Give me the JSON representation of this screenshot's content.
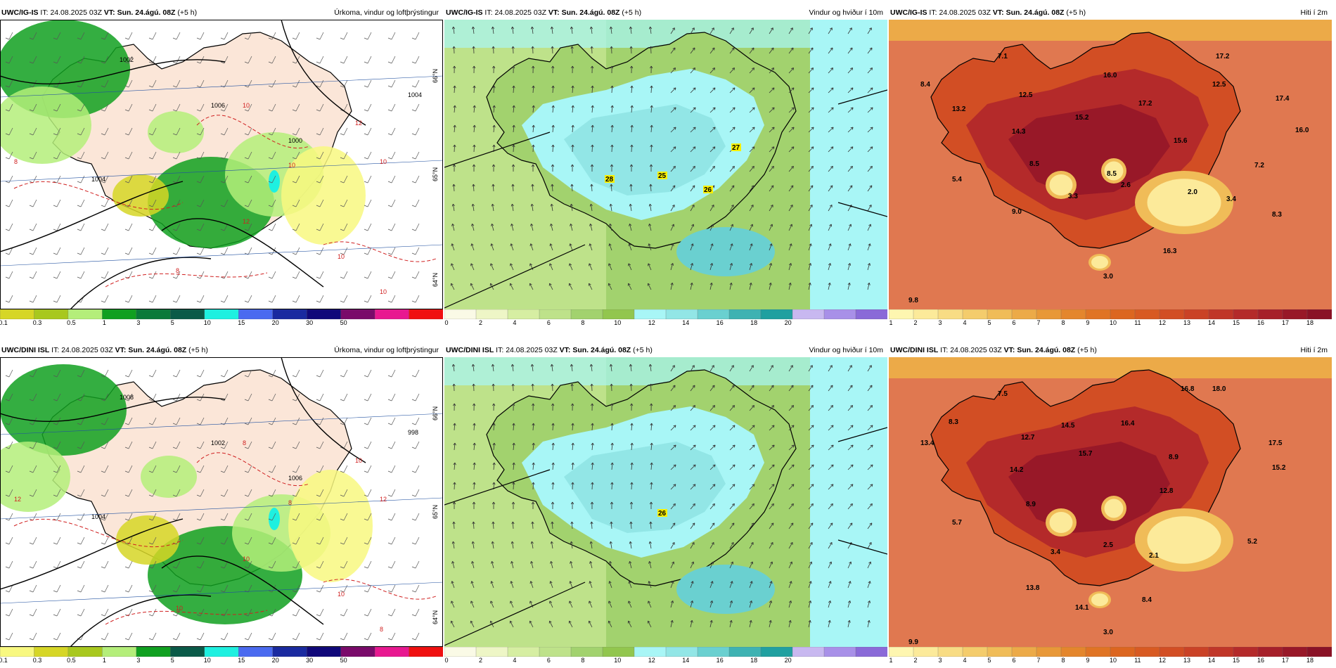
{
  "panels": [
    {
      "id": "precip-igis",
      "model": "UWC/IG-IS",
      "it_label": "IT:",
      "it_value": "24.08.2025 03Z",
      "vt_label": "VT:",
      "vt_value": "Sun. 24.ágú. 08Z",
      "lead": "(+5 h)",
      "title": "Úrkoma, vindur og loftþrýstingur",
      "colorbar_ticks": [
        "0.1",
        "0.3",
        "0.5",
        "1",
        "3",
        "5",
        "10",
        "15",
        "20",
        "30",
        "50"
      ],
      "colorbar_colors": [
        "#d6d626",
        "#a8c81e",
        "#b4ee7a",
        "#10a020",
        "#0a7a3a",
        "#0a5a48",
        "#1ef0e0",
        "#4a6af0",
        "#1a2aa0",
        "#10087a",
        "#7a0a6a",
        "#e81890",
        "#f01010"
      ],
      "pressure_labels": [
        "1006",
        "1004",
        "1000",
        "1002",
        "1004"
      ],
      "temperature_labels": [
        "10",
        "12",
        "8",
        "10",
        "10",
        "12",
        "8",
        "10",
        "10"
      ],
      "lat_labels": [
        "66°N",
        "65°N",
        "64°N"
      ]
    },
    {
      "id": "wind-igis",
      "model": "UWC/IG-IS",
      "it_label": "IT:",
      "it_value": "24.08.2025 03Z",
      "vt_label": "VT:",
      "vt_value": "Sun. 24.ágú. 08Z",
      "lead": "(+5 h)",
      "title": "Vindur og hviður í 10m",
      "colorbar_ticks": [
        "0",
        "2",
        "4",
        "6",
        "8",
        "10",
        "12",
        "14",
        "16",
        "18",
        "20"
      ],
      "colorbar_colors": [
        "#fafae6",
        "#eef6c6",
        "#d6eea2",
        "#bee28a",
        "#a2d26e",
        "#92c64e",
        "#a8f6f6",
        "#92e6e6",
        "#6ad0d0",
        "#3eb2b2",
        "#20a0a0",
        "#c8b8f0",
        "#a890e8",
        "#8a6ad8"
      ],
      "gust_labels": [
        "28",
        "25",
        "26",
        "27"
      ]
    },
    {
      "id": "temp-igis",
      "model": "UWC/IG-IS",
      "it_label": "IT:",
      "it_value": "24.08.2025 03Z",
      "vt_label": "VT:",
      "vt_value": "Sun. 24.ágú. 08Z",
      "lead": "(+5 h)",
      "title": "Hiti í 2m",
      "colorbar_ticks": [
        "1",
        "2",
        "3",
        "4",
        "5",
        "6",
        "7",
        "8",
        "9",
        "10",
        "11",
        "12",
        "13",
        "14",
        "15",
        "16",
        "17",
        "18"
      ],
      "colorbar_colors": [
        "#fef6b0",
        "#fcea9a",
        "#f8dc84",
        "#f4cc6c",
        "#f0bc58",
        "#ecaa48",
        "#e89838",
        "#e4862c",
        "#e07424",
        "#dc6620",
        "#d85a22",
        "#d24e24",
        "#ca4226",
        "#c03628",
        "#b42a2a",
        "#a6202a",
        "#981828",
        "#8a1226"
      ],
      "values": [
        "7.1",
        "8.4",
        "12.5",
        "16.0",
        "17.2",
        "12.5",
        "17.4",
        "13.2",
        "17.2",
        "15.2",
        "16.0",
        "14.3",
        "15.6",
        "8.5",
        "7.2",
        "8.5",
        "5.4",
        "3.3",
        "2.6",
        "2.0",
        "3.4",
        "8.3",
        "9.0",
        "16.3",
        "3.0",
        "9.8"
      ]
    },
    {
      "id": "precip-dini",
      "model": "UWC/DINI ISL",
      "it_label": "IT:",
      "it_value": "24.08.2025 03Z",
      "vt_label": "VT:",
      "vt_value": "Sun. 24.ágú. 08Z",
      "lead": "(+5 h)",
      "title": "Úrkoma, vindur og loftþrýstingur",
      "colorbar_ticks": [
        "0.1",
        "0.3",
        "0.5",
        "1",
        "3",
        "5",
        "10",
        "15",
        "20",
        "30",
        "50"
      ],
      "colorbar_colors": [
        "#f8f880",
        "#d6d626",
        "#a8c81e",
        "#b4ee7a",
        "#10a020",
        "#0a5a48",
        "#1ef0e0",
        "#4a6af0",
        "#1a2aa0",
        "#10087a",
        "#7a0a6a",
        "#e81890",
        "#f01010"
      ],
      "pressure_labels": [
        "1002",
        "1004",
        "1006",
        "1008",
        "998"
      ],
      "temperature_labels": [
        "8",
        "10",
        "12",
        "8",
        "12",
        "10",
        "10",
        "8",
        "10"
      ],
      "lat_labels": [
        "66°N",
        "65°N",
        "64°N"
      ]
    },
    {
      "id": "wind-dini",
      "model": "UWC/DINI ISL",
      "it_label": "IT:",
      "it_value": "24.08.2025 03Z",
      "vt_label": "VT:",
      "vt_value": "Sun. 24.ágú. 08Z",
      "lead": "(+5 h)",
      "title": "Vindur og hviður í 10m",
      "colorbar_ticks": [
        "0",
        "2",
        "4",
        "6",
        "8",
        "10",
        "12",
        "14",
        "16",
        "18",
        "20"
      ],
      "colorbar_colors": [
        "#fafae6",
        "#eef6c6",
        "#d6eea2",
        "#bee28a",
        "#a2d26e",
        "#92c64e",
        "#a8f6f6",
        "#92e6e6",
        "#6ad0d0",
        "#3eb2b2",
        "#20a0a0",
        "#c8b8f0",
        "#a890e8",
        "#8a6ad8"
      ],
      "gust_labels": [
        "26"
      ]
    },
    {
      "id": "temp-dini",
      "model": "UWC/DINI ISL",
      "it_label": "IT:",
      "it_value": "24.08.2025 03Z",
      "vt_label": "VT:",
      "vt_value": "Sun. 24.ágú. 08Z",
      "lead": "(+5 h)",
      "title": "Hiti í 2m",
      "colorbar_ticks": [
        "1",
        "2",
        "3",
        "4",
        "5",
        "6",
        "7",
        "8",
        "9",
        "10",
        "11",
        "12",
        "13",
        "14",
        "15",
        "16",
        "17",
        "18"
      ],
      "colorbar_colors": [
        "#fef6b0",
        "#fcea9a",
        "#f8dc84",
        "#f4cc6c",
        "#f0bc58",
        "#ecaa48",
        "#e89838",
        "#e4862c",
        "#e07424",
        "#dc6620",
        "#d85a22",
        "#d24e24",
        "#ca4226",
        "#c03628",
        "#b42a2a",
        "#a6202a",
        "#981828",
        "#8a1226"
      ],
      "values": [
        "7.5",
        "16.8",
        "18.0",
        "8.3",
        "12.7",
        "14.5",
        "16.4",
        "13.4",
        "17.5",
        "14.2",
        "15.7",
        "8.9",
        "15.2",
        "12.8",
        "8.9",
        "5.7",
        "3.4",
        "2.5",
        "2.1",
        "5.2",
        "13.8",
        "8.4",
        "14.1",
        "3.0",
        "9.9"
      ]
    }
  ]
}
